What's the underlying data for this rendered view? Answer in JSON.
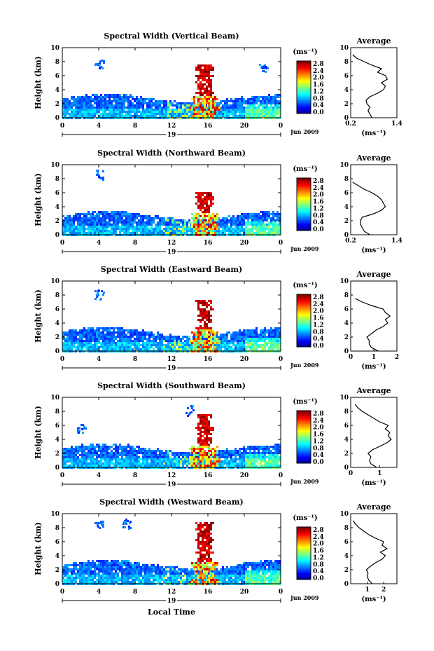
{
  "figure": {
    "xlabel": "Local Time",
    "date_label": "Jun 2009",
    "day_label": "19",
    "colorbar_unit_label": "(ms⁻¹)",
    "colorbar_ticks": [
      "2.8",
      "2.4",
      "2.0",
      "1.6",
      "1.2",
      "0.8",
      "0.4",
      "0.0"
    ],
    "colorbar_range": [
      0.0,
      3.0
    ],
    "x_ticks": [
      "0",
      "4",
      "8",
      "12",
      "16",
      "20",
      "0"
    ],
    "x_range_hours": [
      0,
      24
    ],
    "y_ticks": [
      "0",
      "2",
      "4",
      "6",
      "8",
      "10"
    ],
    "y_range_km": [
      0,
      10
    ],
    "colors": {
      "jet_low": "#2a2a8a",
      "jet_mid": "#2aa8f0",
      "jet_high": "#ff3b2a",
      "background": "#ffffff"
    }
  },
  "chart_data": [
    {
      "type": "heatmap",
      "title": "Spectral Width (Vertical Beam)",
      "ylabel": "Height (km)",
      "xlabel": "",
      "zlabel": "(ms⁻¹)",
      "cloud_top_km": 3.0,
      "convective_column": {
        "x_hour": 16,
        "top_km": 7.5
      },
      "upper_patches": [
        {
          "x_hour": 4,
          "y_km": 8.0
        },
        {
          "x_hour": 22,
          "y_km": 7.5
        }
      ],
      "profile": {
        "title": "Average",
        "xlabel": "(ms⁻¹)",
        "xlim": [
          0.2,
          1.4
        ],
        "x_ticks": [
          "0.2",
          "1.4"
        ],
        "height_km": [
          0,
          0.5,
          1,
          1.5,
          2,
          2.5,
          3,
          3.5,
          4,
          4.5,
          5,
          5.5,
          6,
          6.5,
          7,
          7.5,
          8,
          8.5,
          9
        ],
        "values": [
          0.75,
          0.7,
          0.65,
          0.7,
          0.62,
          0.6,
          0.7,
          0.9,
          1.05,
          1.1,
          1.0,
          1.15,
          1.1,
          0.9,
          1.0,
          0.75,
          0.55,
          0.35,
          0.25
        ]
      }
    },
    {
      "type": "heatmap",
      "title": "Spectral Width (Northward Beam)",
      "ylabel": "Height (km)",
      "xlabel": "",
      "zlabel": "(ms⁻¹)",
      "cloud_top_km": 3.0,
      "convective_column": {
        "x_hour": 16,
        "top_km": 6.0
      },
      "upper_patches": [
        {
          "x_hour": 4,
          "y_km": 9.0
        }
      ],
      "profile": {
        "title": "Average",
        "xlabel": "(ms⁻¹)",
        "xlim": [
          0.2,
          1.4
        ],
        "x_ticks": [
          "0.2",
          "1.4"
        ],
        "height_km": [
          0,
          0.5,
          1,
          1.5,
          2,
          2.5,
          3,
          3.5,
          4,
          4.5,
          5,
          5.5,
          6,
          6.5,
          7,
          7.5
        ],
        "values": [
          0.7,
          0.55,
          0.5,
          0.45,
          0.45,
          0.5,
          0.8,
          1.0,
          1.1,
          1.05,
          1.0,
          0.9,
          0.75,
          0.55,
          0.4,
          0.25
        ]
      }
    },
    {
      "type": "heatmap",
      "title": "Spectral Width (Eastward Beam)",
      "ylabel": "Height (km)",
      "xlabel": "",
      "zlabel": "(ms⁻¹)",
      "cloud_top_km": 3.0,
      "convective_column": {
        "x_hour": 16,
        "top_km": 7.0
      },
      "upper_patches": [
        {
          "x_hour": 4,
          "y_km": 8.5
        }
      ],
      "profile": {
        "title": "Average",
        "xlabel": "(ms⁻¹)",
        "xlim": [
          0,
          2
        ],
        "x_ticks": [
          "0",
          "1",
          "2"
        ],
        "height_km": [
          0,
          0.5,
          1,
          1.5,
          2,
          2.5,
          3,
          3.5,
          4,
          4.5,
          5,
          5.5,
          6,
          6.5,
          7,
          7.5
        ],
        "values": [
          1.2,
          0.9,
          0.8,
          0.8,
          0.7,
          0.9,
          1.1,
          1.4,
          1.6,
          1.5,
          1.7,
          1.5,
          1.4,
          0.9,
          0.5,
          0.2
        ]
      }
    },
    {
      "type": "heatmap",
      "title": "Spectral Width (Southward Beam)",
      "ylabel": "Height (km)",
      "xlabel": "",
      "zlabel": "(ms⁻¹)",
      "cloud_top_km": 3.0,
      "convective_column": {
        "x_hour": 16,
        "top_km": 7.5
      },
      "upper_patches": [
        {
          "x_hour": 2,
          "y_km": 6.0
        },
        {
          "x_hour": 14,
          "y_km": 8.5
        }
      ],
      "profile": {
        "title": "Average",
        "xlabel": "(ms⁻¹)",
        "xlim": [
          0,
          1.6
        ],
        "x_ticks": [
          "0",
          "1"
        ],
        "height_km": [
          0,
          0.5,
          1,
          1.5,
          2,
          2.5,
          3,
          3.5,
          4,
          4.5,
          5,
          5.5,
          6,
          6.5,
          7,
          7.5,
          8,
          8.5,
          9
        ],
        "values": [
          0.9,
          0.7,
          0.65,
          0.7,
          0.6,
          0.75,
          1.0,
          1.25,
          1.4,
          1.3,
          1.35,
          1.2,
          1.3,
          1.0,
          0.8,
          0.6,
          0.4,
          0.25,
          0.15
        ]
      }
    },
    {
      "type": "heatmap",
      "title": "Spectral Width (Westward Beam)",
      "ylabel": "Height (km)",
      "xlabel": "Local Time",
      "zlabel": "(ms⁻¹)",
      "cloud_top_km": 3.0,
      "convective_column": {
        "x_hour": 16,
        "top_km": 8.5
      },
      "upper_patches": [
        {
          "x_hour": 4,
          "y_km": 9.0
        },
        {
          "x_hour": 7,
          "y_km": 9.0
        }
      ],
      "profile": {
        "title": "Average",
        "xlabel": "(ms⁻¹)",
        "xlim": [
          0,
          2.8
        ],
        "x_ticks": [
          "1",
          "2"
        ],
        "height_km": [
          0,
          0.5,
          1,
          1.5,
          2,
          2.5,
          3,
          3.5,
          4,
          4.5,
          5,
          5.5,
          6,
          6.5,
          7,
          7.5,
          8,
          8.5,
          9
        ],
        "values": [
          1.3,
          1.1,
          1.0,
          1.05,
          0.95,
          1.2,
          1.5,
          1.9,
          2.1,
          1.8,
          2.2,
          1.9,
          2.0,
          1.5,
          1.1,
          0.8,
          0.5,
          0.3,
          0.15
        ]
      }
    }
  ]
}
